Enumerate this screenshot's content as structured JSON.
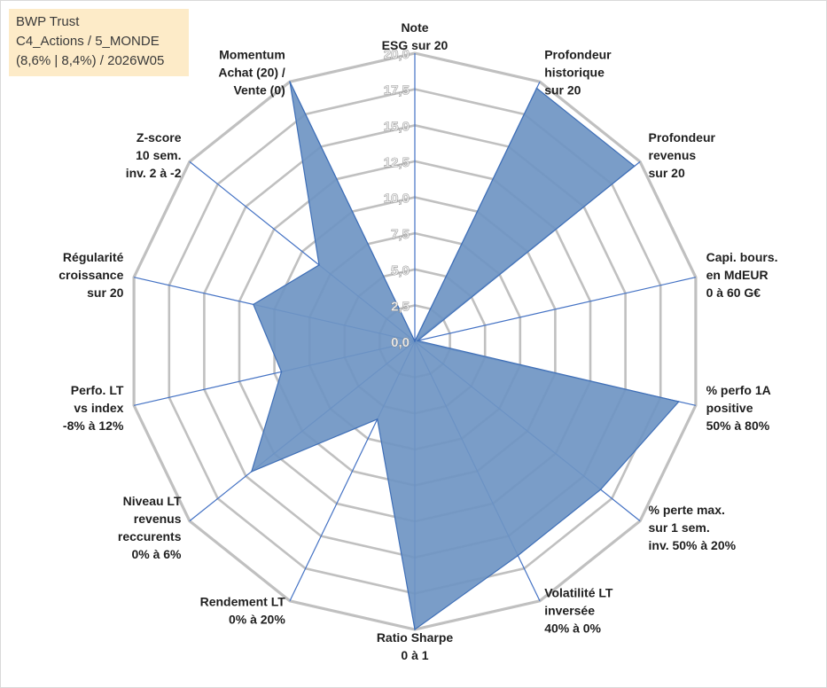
{
  "info_box": {
    "line1": "BWP Trust",
    "line2": "C4_Actions / 5_MONDE",
    "line3": "(8,6% | 8,4%) / 2026W05"
  },
  "colors": {
    "fill": "#6f95c3",
    "stroke": "#3f6fb7",
    "grid": "#c0c0c0",
    "spoke": "#4472c4",
    "info_bg": "#fdebc8"
  },
  "chart_data": {
    "type": "radar",
    "title": "",
    "rlim": [
      0,
      20
    ],
    "ticks": [
      "0,0",
      "2,5",
      "5,0",
      "7,5",
      "10,0",
      "12,5",
      "15,0",
      "17,5",
      "20,0"
    ],
    "tick_values": [
      0,
      2.5,
      5,
      7.5,
      10,
      12.5,
      15,
      17.5,
      20
    ],
    "grid": true,
    "categories": [
      [
        "Note",
        "ESG sur 20"
      ],
      [
        "Profondeur",
        "historique",
        "sur 20"
      ],
      [
        "Profondeur",
        "revenus",
        "sur 20"
      ],
      [
        "Capi. bours.",
        "en MdEUR",
        "0 à 60 G€"
      ],
      [
        "% perfo 1A",
        "positive",
        "50% à 80%"
      ],
      [
        "% perte max.",
        "sur 1 sem.",
        "inv. 50% à 20%"
      ],
      [
        "Volatilité LT",
        "inversée",
        "40% à 0%"
      ],
      [
        "Ratio Sharpe",
        "0 à 1"
      ],
      [
        "Rendement LT",
        "0% à 20%"
      ],
      [
        "Niveau LT",
        "revenus",
        "reccurents",
        "0% à 6%"
      ],
      [
        "Perfo. LT",
        "vs index",
        "-8% à 12%"
      ],
      [
        "Régularité",
        "croissance",
        "sur 20"
      ],
      [
        "Z-score",
        "10 sem.",
        "inv. 2 à -2"
      ],
      [
        "Momentum",
        "Achat (20) /",
        "Vente (0)"
      ]
    ],
    "series": [
      {
        "values": [
          0,
          19.5,
          19.5,
          0.2,
          18.8,
          16.5,
          16.5,
          20,
          6,
          14.5,
          9.5,
          11.5,
          8.5,
          20
        ]
      }
    ]
  }
}
